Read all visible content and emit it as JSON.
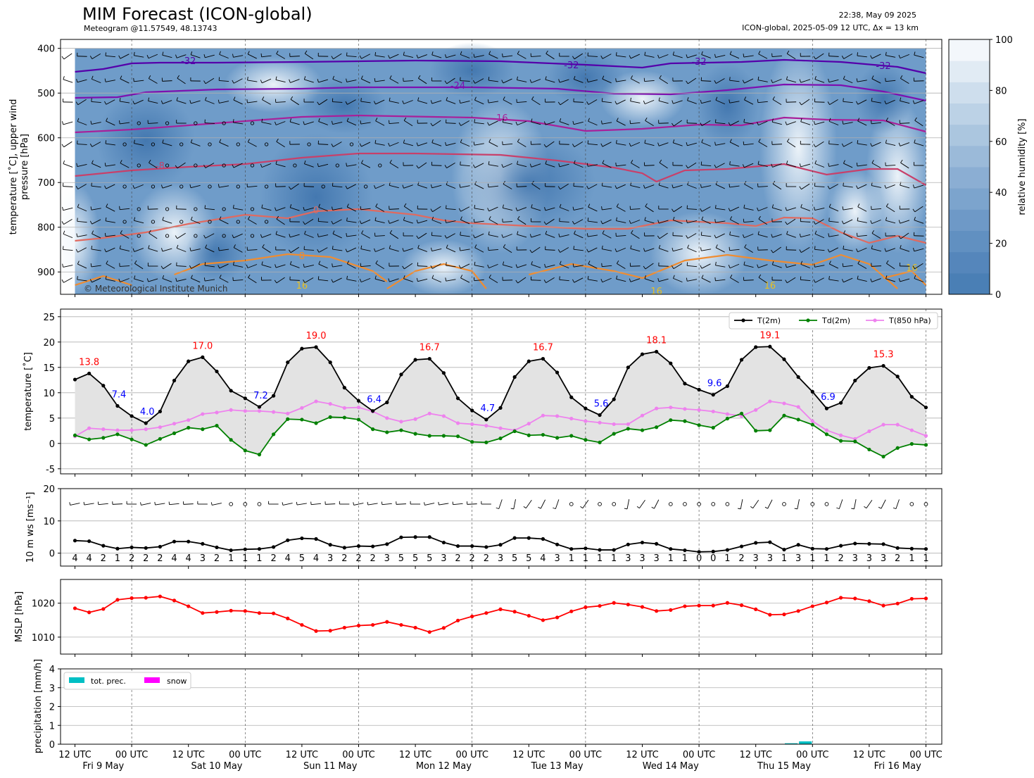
{
  "header": {
    "title": "MIM Forecast (ICON-global)",
    "subtitle": "Meteogram @11.57549, 48.13743",
    "timestamp": "22:38, May 09 2025",
    "model_info": "ICON-global, 2025-05-09 12 UTC, Δx = 13 km"
  },
  "copyright": "© Meteorological Institute Munich",
  "colors": {
    "t2m": "#000000",
    "td2m": "#008000",
    "t850": "#ee82ee",
    "mslp": "#ff0000",
    "precip": "#00bfc4",
    "snow": "#ff00ff",
    "tmax": "#ff0000",
    "tmin": "#0000ff"
  },
  "time_axis": {
    "ticks": [
      "12 UTC",
      "00 UTC",
      "12 UTC",
      "00 UTC",
      "12 UTC",
      "00 UTC",
      "12 UTC",
      "00 UTC",
      "12 UTC",
      "00 UTC",
      "12 UTC",
      "00 UTC",
      "12 UTC",
      "00 UTC",
      "12 UTC",
      "00 UTC"
    ],
    "days": [
      "Fri 9 May",
      "Sat 10 May",
      "Sun 11 May",
      "Mon 12 May",
      "Tue 13 May",
      "Wed 14 May",
      "Thu 15 May",
      "Fri 16 May"
    ]
  },
  "chart_data": [
    {
      "type": "heatmap",
      "name": "upper-air",
      "ylabel": "temperature [˚C], upper wind pressure [hPa]",
      "yticks": [
        400,
        500,
        600,
        700,
        800,
        900
      ],
      "ylim": [
        950,
        380
      ],
      "colorbar": {
        "label": "relative humidity [%]",
        "ticks": [
          0,
          20,
          40,
          60,
          80,
          100
        ]
      },
      "contour_labels": [
        "-32",
        "-32",
        "-32",
        "-32",
        "-24",
        "-16",
        "-8",
        "0",
        "8",
        "16",
        "16",
        "16",
        "16"
      ]
    },
    {
      "type": "line",
      "name": "temperature",
      "ylabel": "temperature [˚C]",
      "yticks": [
        -5,
        0,
        5,
        10,
        15,
        20,
        25
      ],
      "ylim": [
        -6,
        26.5
      ],
      "legend": [
        "T(2m)",
        "Td(2m)",
        "T(850 hPa)"
      ],
      "t2m": [
        12.6,
        13.8,
        11.4,
        7.4,
        5.4,
        4.0,
        6.3,
        12.4,
        16.2,
        17.0,
        14.2,
        10.4,
        8.9,
        7.2,
        9.4,
        16.0,
        18.7,
        19.0,
        16.0,
        11.0,
        8.4,
        6.4,
        8.1,
        13.6,
        16.5,
        16.7,
        13.9,
        8.9,
        6.5,
        4.7,
        7.0,
        13.1,
        16.2,
        16.7,
        14.0,
        9.1,
        6.9,
        5.6,
        8.7,
        15.0,
        17.6,
        18.1,
        15.8,
        11.8,
        10.6,
        9.6,
        11.3,
        16.5,
        19.0,
        19.1,
        16.6,
        13.1,
        10.2,
        6.9,
        8.0,
        12.4,
        14.9,
        15.3,
        13.2,
        9.2,
        7.1
      ],
      "td2m": [
        1.6,
        0.8,
        1.1,
        1.8,
        0.8,
        -0.3,
        0.9,
        2.0,
        3.1,
        2.8,
        3.5,
        0.7,
        -1.4,
        -2.2,
        1.8,
        4.8,
        4.7,
        4.0,
        5.2,
        5.1,
        4.7,
        2.8,
        2.2,
        2.6,
        1.9,
        1.5,
        1.5,
        1.4,
        0.3,
        0.2,
        1.0,
        2.4,
        1.6,
        1.7,
        1.1,
        1.5,
        0.7,
        0.2,
        1.9,
        2.9,
        2.6,
        3.2,
        4.6,
        4.4,
        3.6,
        3.1,
        4.9,
        5.9,
        2.5,
        2.6,
        5.5,
        4.7,
        3.7,
        1.8,
        0.5,
        0.4,
        -1.2,
        -2.6,
        -0.9,
        -0.1,
        -0.3
      ],
      "t850": [
        1.4,
        3.0,
        2.8,
        2.6,
        2.6,
        2.8,
        3.2,
        3.9,
        4.6,
        5.8,
        6.1,
        6.6,
        6.4,
        6.4,
        6.2,
        5.9,
        7.0,
        8.3,
        7.8,
        7.0,
        7.1,
        6.3,
        5.0,
        4.3,
        4.8,
        5.9,
        5.4,
        4.0,
        3.8,
        3.5,
        3.0,
        2.6,
        3.9,
        5.5,
        5.4,
        4.9,
        4.4,
        4.1,
        3.8,
        3.8,
        5.5,
        6.9,
        7.1,
        6.8,
        6.6,
        6.3,
        5.8,
        5.4,
        6.6,
        8.3,
        7.9,
        7.2,
        4.4,
        2.6,
        1.6,
        0.9,
        2.4,
        3.7,
        3.7,
        2.6,
        1.5
      ],
      "maxima": [
        {
          "label": "13.8",
          "i": 1
        },
        {
          "label": "17.0",
          "i": 9
        },
        {
          "label": "19.0",
          "i": 17
        },
        {
          "label": "16.7",
          "i": 25
        },
        {
          "label": "16.7",
          "i": 33
        },
        {
          "label": "18.1",
          "i": 41
        },
        {
          "label": "19.1",
          "i": 49
        },
        {
          "label": "15.3",
          "i": 57
        }
      ],
      "minima": [
        {
          "label": "7.4",
          "i": 3
        },
        {
          "label": "4.0",
          "i": 5
        },
        {
          "label": "7.2",
          "i": 13
        },
        {
          "label": "6.4",
          "i": 21
        },
        {
          "label": "4.7",
          "i": 29
        },
        {
          "label": "5.6",
          "i": 37
        },
        {
          "label": "9.6",
          "i": 45
        },
        {
          "label": "6.9",
          "i": 53
        }
      ]
    },
    {
      "type": "line",
      "name": "wind",
      "ylabel": "10 m ws [ms⁻¹]",
      "yticks": [
        0,
        10,
        20
      ],
      "ylim": [
        -4,
        20
      ],
      "values": [
        3.9,
        3.7,
        2.3,
        1.4,
        1.8,
        1.6,
        2.0,
        3.6,
        3.6,
        2.9,
        1.8,
        0.9,
        1.2,
        1.3,
        1.9,
        4.0,
        4.6,
        4.4,
        2.6,
        1.7,
        2.2,
        2.1,
        2.8,
        4.9,
        5.0,
        5.0,
        3.3,
        2.2,
        2.2,
        1.9,
        2.6,
        4.7,
        4.7,
        4.4,
        2.7,
        1.3,
        1.5,
        1.0,
        1.0,
        2.7,
        3.3,
        2.9,
        1.3,
        0.9,
        0.4,
        0.5,
        1.0,
        2.1,
        3.2,
        3.4,
        1.1,
        2.6,
        1.4,
        1.3,
        2.3,
        3.0,
        2.9,
        2.8,
        1.6,
        1.4,
        1.3
      ],
      "labels": [
        "4",
        "4",
        "2",
        "1",
        "2",
        "2",
        "2",
        "4",
        "4",
        "3",
        "2",
        "1",
        "1",
        "1",
        "2",
        "4",
        "5",
        "4",
        "3",
        "2",
        "2",
        "2",
        "3",
        "5",
        "5",
        "5",
        "3",
        "2",
        "2",
        "2",
        "3",
        "5",
        "5",
        "4",
        "3",
        "1",
        "1",
        "1",
        "1",
        "3",
        "3",
        "3",
        "1",
        "1",
        "0",
        "0",
        "1",
        "2",
        "3",
        "3",
        "1",
        "3",
        "1",
        "1",
        "2",
        "3",
        "3",
        "3",
        "2",
        "1",
        "1"
      ]
    },
    {
      "type": "line",
      "name": "mslp",
      "ylabel": "MSLP [hPa]",
      "yticks": [
        1010,
        1020
      ],
      "ylim": [
        1005,
        1027
      ],
      "values": [
        1018.5,
        1017.3,
        1018.3,
        1021.0,
        1021.5,
        1021.6,
        1022.0,
        1020.8,
        1019.1,
        1017.1,
        1017.4,
        1017.8,
        1017.7,
        1017.1,
        1017.0,
        1015.5,
        1013.6,
        1011.8,
        1011.9,
        1012.8,
        1013.4,
        1013.6,
        1014.5,
        1013.6,
        1012.8,
        1011.5,
        1012.7,
        1014.9,
        1016.1,
        1017.1,
        1018.2,
        1017.5,
        1016.3,
        1015.0,
        1015.8,
        1017.6,
        1018.8,
        1019.2,
        1020.1,
        1019.6,
        1018.9,
        1017.7,
        1018.0,
        1019.1,
        1019.3,
        1019.3,
        1020.1,
        1019.4,
        1018.2,
        1016.6,
        1016.7,
        1017.7,
        1019.1,
        1020.2,
        1021.6,
        1021.4,
        1020.6,
        1019.3,
        1019.9,
        1021.3,
        1021.4
      ]
    },
    {
      "type": "bar",
      "name": "precipitation",
      "ylabel": "precipitation [mm/h]",
      "yticks": [
        0,
        1,
        2,
        3,
        4
      ],
      "ylim": [
        0,
        4
      ],
      "legend": [
        "tot. prec.",
        "snow"
      ],
      "tot_prec": [
        0,
        0,
        0,
        0,
        0,
        0,
        0,
        0,
        0,
        0,
        0,
        0,
        0,
        0,
        0,
        0,
        0,
        0,
        0,
        0,
        0,
        0,
        0,
        0,
        0,
        0,
        0,
        0,
        0,
        0,
        0,
        0,
        0,
        0,
        0,
        0,
        0,
        0,
        0,
        0,
        0,
        0,
        0,
        0,
        0,
        0,
        0,
        0,
        0,
        0,
        0.05,
        0.15,
        0,
        0,
        0,
        0,
        0,
        0,
        0,
        0,
        0
      ],
      "snow": []
    }
  ]
}
